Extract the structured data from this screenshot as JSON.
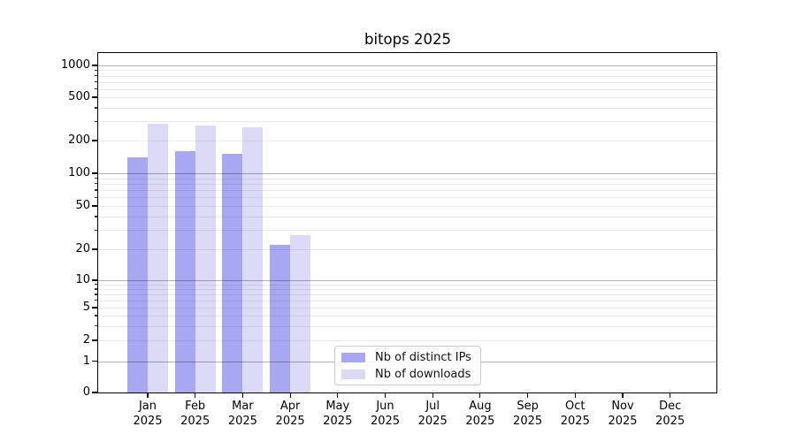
{
  "title": "bitops 2025",
  "chart_data": {
    "type": "bar",
    "title": "bitops 2025",
    "categories": [
      "Jan 2025",
      "Feb 2025",
      "Mar 2025",
      "Apr 2025",
      "May 2025",
      "Jun 2025",
      "Jul 2025",
      "Aug 2025",
      "Sep 2025",
      "Oct 2025",
      "Nov 2025",
      "Dec 2025"
    ],
    "series": [
      {
        "name": "Nb of distinct IPs",
        "color": "#a7a7f2",
        "values": [
          140,
          160,
          150,
          22,
          0,
          0,
          0,
          0,
          0,
          0,
          0,
          0
        ]
      },
      {
        "name": "Nb of downloads",
        "color": "#dbdbf8",
        "values": [
          285,
          275,
          265,
          27,
          0,
          0,
          0,
          0,
          0,
          0,
          0,
          0
        ]
      }
    ],
    "yscale": "symlog",
    "yticks": [
      0,
      1,
      2,
      5,
      10,
      20,
      50,
      100,
      200,
      500,
      1000
    ],
    "ylim": [
      0,
      1400
    ],
    "xlabel": "",
    "ylabel": "",
    "grid": "both",
    "legend": {
      "labels": [
        "Nb of distinct IPs",
        "Nb of downloads"
      ],
      "position": "lower-center"
    }
  },
  "colors": {
    "bar_dark": "#a7a7f2",
    "bar_light": "#dbdbf8",
    "grid_major": "#b3b3b3",
    "grid_minor": "#ebebeb",
    "legend_border": "#cccccc",
    "spine": "#000000"
  }
}
